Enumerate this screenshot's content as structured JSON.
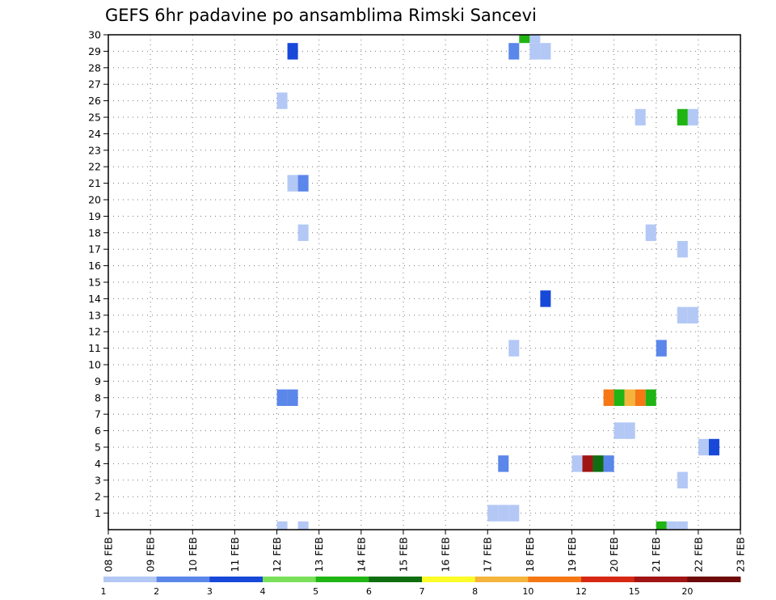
{
  "chart_data": {
    "type": "heatmap",
    "title": "GEFS 6hr padavine po ansamblima Rimski Sancevi",
    "x_ticks": [
      "08 FEB",
      "09 FEB",
      "10 FEB",
      "11 FEB",
      "12 FEB",
      "13 FEB",
      "14 FEB",
      "15 FEB",
      "16 FEB",
      "17 FEB",
      "18 FEB",
      "19 FEB",
      "20 FEB",
      "21 FEB",
      "22 FEB",
      "23 FEB"
    ],
    "y_ticks": [
      "1",
      "2",
      "3",
      "4",
      "5",
      "6",
      "7",
      "8",
      "9",
      "10",
      "11",
      "12",
      "13",
      "14",
      "15",
      "16",
      "17",
      "18",
      "19",
      "20",
      "21",
      "22",
      "23",
      "24",
      "25",
      "26",
      "27",
      "28",
      "29",
      "30"
    ],
    "x_range_days": [
      0,
      15
    ],
    "y_range": [
      0,
      30
    ],
    "time_step_hours": 6,
    "grid": true,
    "legend": {
      "placement": "bottom",
      "labels": [
        "1",
        "2",
        "3",
        "4",
        "5",
        "6",
        "7",
        "8",
        "10",
        "12",
        "15",
        "20"
      ],
      "colors": [
        "#b3c8f5",
        "#5b86ea",
        "#1748d8",
        "#7ae05a",
        "#20b414",
        "#0e6e10",
        "#fcfc28",
        "#f5b43c",
        "#f57814",
        "#d72814",
        "#a01414",
        "#6e0a0a"
      ]
    },
    "points": [
      {
        "day": 4.0,
        "member": 0,
        "value": 1
      },
      {
        "day": 4.5,
        "member": 0,
        "value": 1
      },
      {
        "day": 9.0,
        "member": 1,
        "value": 1
      },
      {
        "day": 9.25,
        "member": 1,
        "value": 1
      },
      {
        "day": 9.5,
        "member": 1,
        "value": 1
      },
      {
        "day": 13.0,
        "member": 0,
        "value": 5
      },
      {
        "day": 13.25,
        "member": 0,
        "value": 1
      },
      {
        "day": 13.5,
        "member": 0,
        "value": 1
      },
      {
        "day": 13.5,
        "member": 3,
        "value": 1
      },
      {
        "day": 9.25,
        "member": 4,
        "value": 2
      },
      {
        "day": 11.0,
        "member": 4,
        "value": 1
      },
      {
        "day": 11.25,
        "member": 4,
        "value": 15
      },
      {
        "day": 11.5,
        "member": 4,
        "value": 6
      },
      {
        "day": 11.75,
        "member": 4,
        "value": 2
      },
      {
        "day": 14.0,
        "member": 5,
        "value": 1
      },
      {
        "day": 14.25,
        "member": 5,
        "value": 3
      },
      {
        "day": 12.0,
        "member": 6,
        "value": 1
      },
      {
        "day": 12.25,
        "member": 6,
        "value": 1
      },
      {
        "day": 4.0,
        "member": 8,
        "value": 2
      },
      {
        "day": 4.25,
        "member": 8,
        "value": 2
      },
      {
        "day": 11.75,
        "member": 8,
        "value": 10
      },
      {
        "day": 12.0,
        "member": 8,
        "value": 5
      },
      {
        "day": 12.25,
        "member": 8,
        "value": 8
      },
      {
        "day": 12.5,
        "member": 8,
        "value": 10
      },
      {
        "day": 12.75,
        "member": 8,
        "value": 5
      },
      {
        "day": 9.5,
        "member": 11,
        "value": 1
      },
      {
        "day": 13.0,
        "member": 11,
        "value": 2
      },
      {
        "day": 13.5,
        "member": 13,
        "value": 1
      },
      {
        "day": 13.75,
        "member": 13,
        "value": 1
      },
      {
        "day": 10.25,
        "member": 14,
        "value": 3
      },
      {
        "day": 13.5,
        "member": 17,
        "value": 1
      },
      {
        "day": 4.5,
        "member": 18,
        "value": 1
      },
      {
        "day": 12.75,
        "member": 18,
        "value": 1
      },
      {
        "day": 4.25,
        "member": 21,
        "value": 1
      },
      {
        "day": 4.5,
        "member": 21,
        "value": 2
      },
      {
        "day": 4.0,
        "member": 26,
        "value": 1
      },
      {
        "day": 12.5,
        "member": 25,
        "value": 1
      },
      {
        "day": 13.5,
        "member": 25,
        "value": 5
      },
      {
        "day": 13.75,
        "member": 25,
        "value": 1
      },
      {
        "day": 4.25,
        "member": 29,
        "value": 3
      },
      {
        "day": 9.5,
        "member": 29,
        "value": 2
      },
      {
        "day": 10.0,
        "member": 29,
        "value": 1
      },
      {
        "day": 10.25,
        "member": 29,
        "value": 1
      },
      {
        "day": 9.75,
        "member": 30,
        "value": 5
      },
      {
        "day": 10.0,
        "member": 30,
        "value": 1
      }
    ]
  }
}
